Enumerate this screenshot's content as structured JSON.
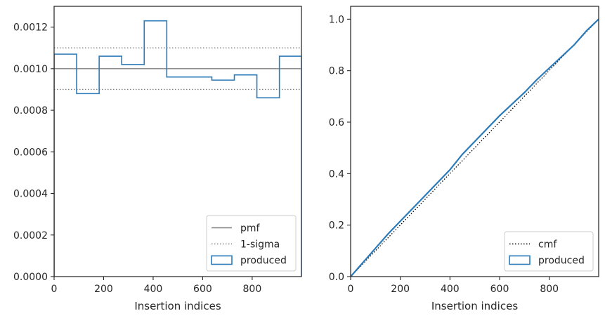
{
  "chart_data": [
    {
      "type": "histogram-step",
      "xlabel": "Insertion indices",
      "ylabel": "",
      "xlim": [
        0,
        999
      ],
      "ylim": [
        0,
        0.0013
      ],
      "xticks": [
        0,
        200,
        400,
        600,
        800
      ],
      "yticks": [
        0,
        0.0002,
        0.0004,
        0.0006,
        0.0008,
        0.001,
        0.0012
      ],
      "ytick_labels": [
        "0.0000",
        "0.0002",
        "0.0004",
        "0.0006",
        "0.0008",
        "0.0010",
        "0.0012"
      ],
      "bin_edges": [
        0,
        91,
        182,
        273,
        364,
        455,
        546,
        637,
        728,
        819,
        910,
        999
      ],
      "series": [
        {
          "name": "produced",
          "values": [
            0.00107,
            0.00088,
            0.00106,
            0.00102,
            0.00123,
            0.00096,
            0.00096,
            0.000945,
            0.00097,
            0.00086,
            0.00106
          ],
          "color": "#2b7bba"
        }
      ],
      "reference_lines": [
        {
          "name": "pmf",
          "y": 0.001,
          "style": "solid",
          "color": "#7f7f7f"
        },
        {
          "name": "1-sigma",
          "y": 0.0011,
          "style": "dotted",
          "color": "#7f7f7f"
        },
        {
          "name": "",
          "y": 0.0009,
          "style": "dotted",
          "color": "#7f7f7f"
        }
      ],
      "legend": {
        "placement": "lower-right",
        "entries": [
          {
            "label": "pmf",
            "kind": "line-solid",
            "color": "#7f7f7f"
          },
          {
            "label": "1-sigma",
            "kind": "line-dotted",
            "color": "#7f7f7f"
          },
          {
            "label": "produced",
            "kind": "patch",
            "color": "#2b7bba"
          }
        ]
      },
      "grid": false
    },
    {
      "type": "line",
      "xlabel": "Insertion indices",
      "ylabel": "",
      "xlim": [
        0,
        999
      ],
      "ylim": [
        0,
        1.05
      ],
      "xticks": [
        0,
        200,
        400,
        600,
        800
      ],
      "yticks": [
        0,
        0.2,
        0.4,
        0.6,
        0.8,
        1.0
      ],
      "ytick_labels": [
        "0.0",
        "0.2",
        "0.4",
        "0.6",
        "0.8",
        "1.0"
      ],
      "series": [
        {
          "name": "cmf",
          "x": [
            0,
            999
          ],
          "y": [
            0,
            1.0
          ],
          "style": "dotted",
          "color": "#000000"
        },
        {
          "name": "produced",
          "x": [
            0,
            50,
            100,
            150,
            200,
            250,
            300,
            350,
            400,
            450,
            500,
            550,
            600,
            650,
            700,
            750,
            800,
            850,
            900,
            950,
            999
          ],
          "y": [
            0,
            0.055,
            0.11,
            0.165,
            0.215,
            0.265,
            0.315,
            0.365,
            0.415,
            0.475,
            0.525,
            0.575,
            0.625,
            0.67,
            0.715,
            0.765,
            0.81,
            0.855,
            0.9,
            0.955,
            1.0
          ],
          "style": "solid",
          "color": "#2b7bba"
        }
      ],
      "legend": {
        "placement": "lower-right",
        "entries": [
          {
            "label": "cmf",
            "kind": "line-dotted",
            "color": "#000000"
          },
          {
            "label": "produced",
            "kind": "patch",
            "color": "#2b7bba"
          }
        ]
      },
      "grid": false
    }
  ]
}
